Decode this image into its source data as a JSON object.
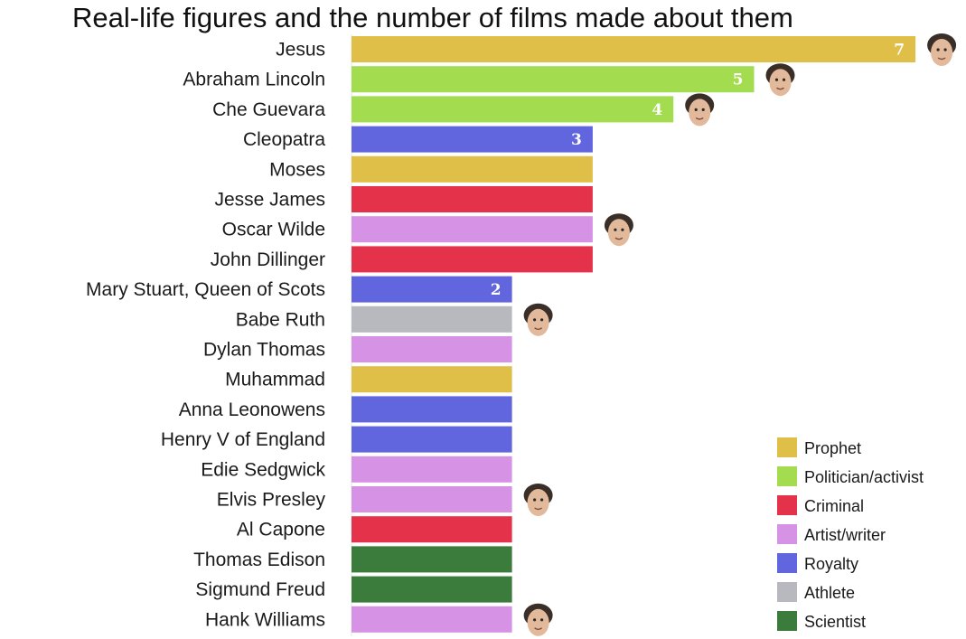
{
  "chart_data": {
    "type": "bar",
    "orientation": "horizontal",
    "title": "Real-life figures and the number of films made about them",
    "xlabel": "",
    "ylabel": "",
    "xlim": [
      0,
      7
    ],
    "grid": false,
    "legend_position": "bottom-right",
    "categories": [
      "Jesus",
      "Abraham Lincoln",
      "Che Guevara",
      "Cleopatra",
      "Moses",
      "Jesse James",
      "Oscar Wilde",
      "John Dillinger",
      "Mary Stuart, Queen of Scots",
      "Babe Ruth",
      "Dylan Thomas",
      "Muhammad",
      "Anna Leonowens",
      "Henry V of England",
      "Edie Sedgwick",
      "Elvis Presley",
      "Al Capone",
      "Thomas Edison",
      "Sigmund Freud",
      "Hank Williams"
    ],
    "values": [
      7,
      5,
      4,
      3,
      3,
      3,
      3,
      3,
      2,
      2,
      2,
      2,
      2,
      2,
      2,
      2,
      2,
      2,
      2,
      2
    ],
    "groups": [
      "Prophet",
      "Politician/activist",
      "Politician/activist",
      "Royalty",
      "Prophet",
      "Criminal",
      "Artist/writer",
      "Criminal",
      "Royalty",
      "Athlete",
      "Artist/writer",
      "Prophet",
      "Royalty",
      "Royalty",
      "Artist/writer",
      "Artist/writer",
      "Criminal",
      "Scientist",
      "Scientist",
      "Artist/writer"
    ],
    "data_labels": [
      "7",
      "5",
      "4",
      "3",
      "",
      "",
      "",
      "",
      "2",
      "",
      "",
      "",
      "",
      "",
      "",
      "",
      "",
      "",
      "",
      ""
    ],
    "portraits": [
      "Jesus",
      "Abraham Lincoln",
      "Che Guevara",
      "Oscar Wilde",
      "Babe Ruth",
      "Elvis Presley",
      "Hank Williams"
    ],
    "legend": [
      {
        "name": "Prophet",
        "color": "#e0bf48"
      },
      {
        "name": "Politician/activist",
        "color": "#a3dc4f"
      },
      {
        "name": "Criminal",
        "color": "#e5324b"
      },
      {
        "name": "Artist/writer",
        "color": "#d693e6"
      },
      {
        "name": "Royalty",
        "color": "#6266de"
      },
      {
        "name": "Athlete",
        "color": "#b8b8bf"
      },
      {
        "name": "Scientist",
        "color": "#3b7c3c"
      }
    ]
  }
}
